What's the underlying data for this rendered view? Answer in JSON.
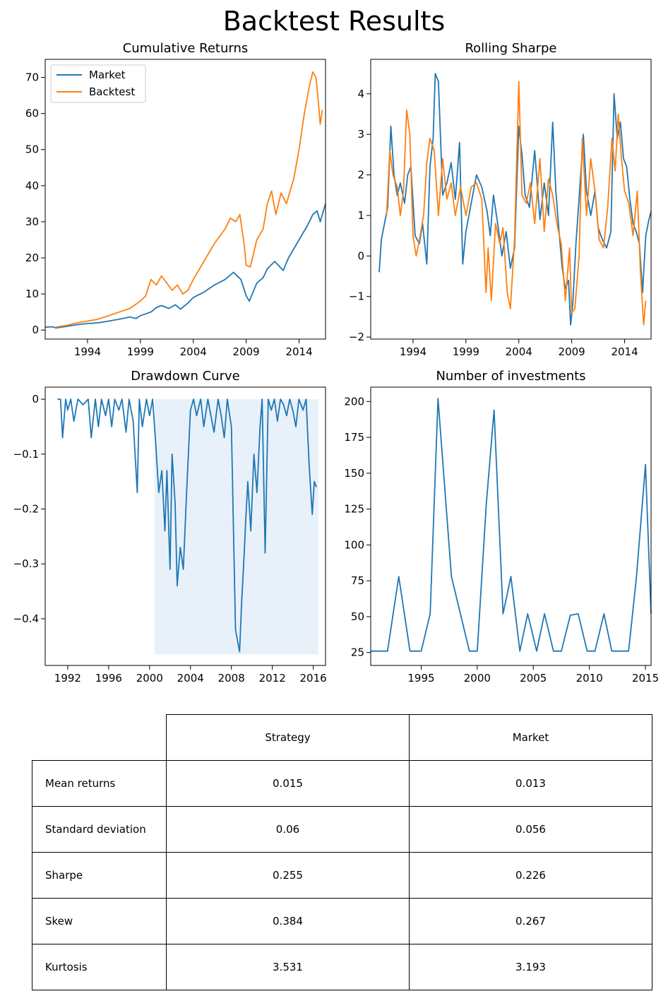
{
  "suptitle": "Backtest Results",
  "colors": {
    "market": "#1f77b4",
    "backtest": "#ff7f0e",
    "fill": "#e8f1fa"
  },
  "chart_data": [
    {
      "id": "cumulative",
      "type": "line",
      "title": "Cumulative Returns",
      "xlim": [
        1990.0,
        2016.5
      ],
      "ylim": [
        -2.5,
        75
      ],
      "xticks": [
        1994,
        1999,
        2004,
        2009,
        2014
      ],
      "yticks": [
        0,
        10,
        20,
        30,
        40,
        50,
        60,
        70
      ],
      "legend": {
        "position": "top-left",
        "entries": [
          "Market",
          "Backtest"
        ]
      },
      "series": [
        {
          "name": "Market",
          "color": "#1f77b4",
          "x": [
            1990.0,
            1990.7,
            1991.0,
            1992.0,
            1993.0,
            1994.0,
            1995.0,
            1996.0,
            1997.0,
            1998.0,
            1998.6,
            1999.0,
            2000.0,
            2000.5,
            2001.0,
            2001.7,
            2002.3,
            2002.8,
            2003.5,
            2004.0,
            2005.0,
            2006.0,
            2007.0,
            2007.8,
            2008.5,
            2009.0,
            2009.3,
            2010.0,
            2010.6,
            2011.0,
            2011.7,
            2012.5,
            2013.0,
            2014.0,
            2014.8,
            2015.3,
            2015.7,
            2016.0,
            2016.5
          ],
          "y": [
            0.8,
            0.9,
            0.6,
            1.0,
            1.5,
            1.8,
            2.0,
            2.5,
            3.0,
            3.6,
            3.2,
            4.0,
            5.0,
            6.2,
            6.8,
            6.0,
            7.0,
            5.8,
            7.5,
            9.0,
            10.5,
            12.5,
            14.0,
            16.0,
            14.0,
            9.5,
            8.0,
            13.0,
            14.5,
            17.0,
            19.0,
            16.5,
            20.0,
            25.0,
            29.0,
            32.0,
            33.0,
            30.0,
            35.0
          ]
        },
        {
          "name": "Backtest",
          "color": "#ff7f0e",
          "x": [
            1991.0,
            1992.0,
            1993.0,
            1994.0,
            1995.0,
            1996.0,
            1997.0,
            1998.0,
            1999.0,
            1999.5,
            2000.0,
            2000.5,
            2001.0,
            2001.5,
            2002.0,
            2002.5,
            2003.0,
            2003.5,
            2004.0,
            2005.0,
            2006.0,
            2007.0,
            2007.5,
            2008.0,
            2008.4,
            2008.8,
            2009.0,
            2009.4,
            2010.0,
            2010.6,
            2011.0,
            2011.4,
            2011.8,
            2012.3,
            2012.8,
            2013.5,
            2014.0,
            2014.5,
            2015.0,
            2015.3,
            2015.6,
            2015.8,
            2016.0,
            2016.2
          ],
          "y": [
            0.8,
            1.3,
            2.0,
            2.5,
            3.0,
            4.0,
            5.0,
            6.0,
            8.0,
            9.5,
            14.0,
            12.5,
            15.0,
            13.0,
            11.0,
            12.5,
            10.0,
            11.0,
            14.0,
            19.0,
            24.0,
            28.0,
            31.0,
            30.0,
            32.0,
            24.0,
            18.0,
            17.5,
            25.0,
            28.0,
            35.0,
            38.5,
            32.0,
            38.0,
            35.0,
            42.0,
            50.0,
            60.0,
            68.0,
            71.5,
            70.0,
            64.0,
            57.0,
            61.0
          ]
        }
      ]
    },
    {
      "id": "rolling-sharpe",
      "type": "line",
      "title": "Rolling Sharpe",
      "xlim": [
        1990.0,
        2016.5
      ],
      "ylim": [
        -2.05,
        4.85
      ],
      "xticks": [
        1994,
        1999,
        2004,
        2009,
        2014
      ],
      "yticks": [
        -2,
        -1,
        0,
        1,
        2,
        3,
        4
      ],
      "series": [
        {
          "name": "Market",
          "color": "#1f77b4",
          "x": [
            1990.8,
            1991.0,
            1991.3,
            1991.6,
            1991.9,
            1992.2,
            1992.5,
            1992.8,
            1993.2,
            1993.5,
            1993.8,
            1994.2,
            1994.6,
            1994.9,
            1995.3,
            1995.6,
            1995.9,
            1996.1,
            1996.4,
            1996.8,
            1997.2,
            1997.6,
            1998.0,
            1998.4,
            1998.7,
            1999.0,
            1999.5,
            2000.0,
            2000.5,
            2001.0,
            2001.3,
            2001.6,
            2002.0,
            2002.4,
            2002.8,
            2003.2,
            2003.6,
            2004.0,
            2004.3,
            2004.6,
            2005.0,
            2005.5,
            2006.0,
            2006.4,
            2006.8,
            2007.2,
            2007.5,
            2007.8,
            2008.1,
            2008.4,
            2008.7,
            2008.9,
            2009.1,
            2009.4,
            2009.8,
            2010.1,
            2010.4,
            2010.8,
            2011.2,
            2011.5,
            2011.9,
            2012.3,
            2012.7,
            2013.0,
            2013.3,
            2013.6,
            2013.9,
            2014.2,
            2014.5,
            2014.8,
            2015.1,
            2015.4,
            2015.7,
            2016.0,
            2016.3,
            2016.5
          ],
          "y": [
            -0.4,
            0.4,
            0.8,
            1.2,
            3.2,
            2.0,
            1.5,
            1.8,
            1.3,
            2.0,
            2.2,
            0.5,
            0.3,
            0.8,
            -0.2,
            2.2,
            2.9,
            4.5,
            4.3,
            1.5,
            1.8,
            2.3,
            1.4,
            2.8,
            -0.2,
            0.6,
            1.3,
            2.0,
            1.7,
            1.1,
            0.5,
            1.5,
            0.8,
            0.0,
            0.6,
            -0.3,
            0.2,
            3.2,
            2.5,
            1.5,
            1.2,
            2.6,
            0.9,
            1.8,
            1.0,
            3.3,
            1.6,
            0.6,
            -0.3,
            -0.8,
            -0.6,
            -1.7,
            -1.2,
            0.3,
            1.8,
            3.0,
            1.6,
            1.0,
            1.6,
            0.7,
            0.4,
            0.2,
            0.6,
            4.0,
            2.9,
            3.3,
            2.4,
            2.2,
            1.4,
            0.8,
            0.6,
            0.3,
            -0.9,
            0.5,
            0.9,
            1.1
          ]
        },
        {
          "name": "Backtest",
          "color": "#ff7f0e",
          "x": [
            1991.5,
            1991.8,
            1992.1,
            1992.5,
            1992.8,
            1993.1,
            1993.4,
            1993.7,
            1994.0,
            1994.3,
            1994.6,
            1995.0,
            1995.3,
            1995.6,
            1996.0,
            1996.4,
            1996.8,
            1997.2,
            1997.6,
            1998.0,
            1998.5,
            1999.0,
            1999.5,
            2000.0,
            2000.5,
            2000.9,
            2001.1,
            2001.4,
            2001.8,
            2002.2,
            2002.5,
            2002.9,
            2003.2,
            2003.6,
            2004.0,
            2004.3,
            2004.7,
            2005.1,
            2005.5,
            2006.0,
            2006.4,
            2006.8,
            2007.2,
            2007.6,
            2008.0,
            2008.4,
            2008.8,
            2009.0,
            2009.3,
            2009.7,
            2010.0,
            2010.4,
            2010.8,
            2011.2,
            2011.6,
            2012.0,
            2012.4,
            2012.8,
            2013.1,
            2013.4,
            2013.7,
            2014.0,
            2014.4,
            2014.8,
            2015.2,
            2015.5,
            2015.8,
            2016.0
          ],
          "y": [
            1.0,
            2.6,
            2.0,
            1.7,
            1.0,
            1.6,
            3.6,
            3.0,
            0.5,
            0.0,
            0.4,
            1.0,
            2.3,
            2.9,
            2.6,
            1.0,
            2.4,
            1.4,
            1.8,
            1.0,
            1.7,
            1.0,
            1.7,
            1.8,
            1.4,
            -0.9,
            0.2,
            -1.1,
            0.8,
            0.3,
            0.7,
            -0.9,
            -1.3,
            0.4,
            4.3,
            1.5,
            1.3,
            1.8,
            0.8,
            2.4,
            0.6,
            1.9,
            1.5,
            0.8,
            0.3,
            -1.1,
            0.2,
            -1.4,
            -1.3,
            0.0,
            2.9,
            1.0,
            2.4,
            1.6,
            0.4,
            0.2,
            1.2,
            2.9,
            2.1,
            3.5,
            2.4,
            1.6,
            1.3,
            0.5,
            1.6,
            -0.4,
            -1.7,
            -1.1
          ]
        }
      ]
    },
    {
      "id": "drawdown",
      "type": "area",
      "title": "Drawdown Curve",
      "xlim": [
        1989.8,
        2017.2
      ],
      "ylim": [
        -0.485,
        0.022
      ],
      "xticks": [
        1992,
        1996,
        2000,
        2004,
        2008,
        2012,
        2016
      ],
      "yticks": [
        0.0,
        -0.1,
        -0.2,
        -0.3,
        -0.4
      ],
      "fill_region": [
        2000.5,
        2016.5
      ],
      "series": [
        {
          "name": "",
          "color": "#1f77b4",
          "x": [
            1991.0,
            1991.3,
            1991.5,
            1991.8,
            1992.0,
            1992.3,
            1992.6,
            1993.0,
            1993.5,
            1994.0,
            1994.3,
            1994.7,
            1995.0,
            1995.3,
            1995.7,
            1996.0,
            1996.3,
            1996.6,
            1997.0,
            1997.3,
            1997.7,
            1998.0,
            1998.4,
            1998.8,
            1999.0,
            1999.3,
            1999.7,
            2000.0,
            2000.3,
            2000.6,
            2000.9,
            2001.2,
            2001.5,
            2001.7,
            2002.0,
            2002.2,
            2002.5,
            2002.7,
            2003.0,
            2003.3,
            2003.6,
            2004.0,
            2004.3,
            2004.6,
            2005.0,
            2005.3,
            2005.7,
            2006.0,
            2006.3,
            2006.7,
            2007.0,
            2007.3,
            2007.6,
            2008.0,
            2008.4,
            2008.8,
            2009.0,
            2009.2,
            2009.4,
            2009.6,
            2009.9,
            2010.2,
            2010.5,
            2010.8,
            2011.0,
            2011.3,
            2011.6,
            2011.9,
            2012.2,
            2012.5,
            2012.8,
            2013.1,
            2013.4,
            2013.7,
            2014.0,
            2014.3,
            2014.6,
            2015.0,
            2015.3,
            2015.6,
            2015.9,
            2016.1,
            2016.3
          ],
          "y": [
            0.0,
            0.0,
            -0.07,
            0.0,
            -0.02,
            0.0,
            -0.04,
            0.0,
            -0.01,
            0.0,
            -0.07,
            0.0,
            -0.05,
            0.0,
            -0.03,
            0.0,
            -0.05,
            0.0,
            -0.02,
            0.0,
            -0.06,
            0.0,
            -0.04,
            -0.17,
            0.0,
            -0.05,
            0.0,
            -0.03,
            0.0,
            -0.08,
            -0.17,
            -0.13,
            -0.24,
            -0.13,
            -0.31,
            -0.1,
            -0.19,
            -0.34,
            -0.27,
            -0.31,
            -0.18,
            -0.02,
            0.0,
            -0.03,
            0.0,
            -0.05,
            0.0,
            -0.03,
            -0.06,
            0.0,
            -0.03,
            -0.07,
            0.0,
            -0.05,
            -0.42,
            -0.46,
            -0.37,
            -0.3,
            -0.22,
            -0.15,
            -0.24,
            -0.1,
            -0.17,
            -0.05,
            0.0,
            -0.28,
            0.0,
            -0.02,
            0.0,
            -0.04,
            0.0,
            -0.01,
            -0.03,
            0.0,
            -0.02,
            -0.05,
            0.0,
            -0.02,
            0.0,
            -0.12,
            -0.21,
            -0.15,
            -0.16
          ]
        }
      ]
    },
    {
      "id": "investments",
      "type": "line",
      "title": "Number of investments",
      "xlim": [
        1990.5,
        2015.5
      ],
      "ylim": [
        16,
        210
      ],
      "xticks": [
        1995,
        2000,
        2005,
        2010,
        2015
      ],
      "yticks": [
        25,
        50,
        75,
        100,
        125,
        150,
        175,
        200
      ],
      "series": [
        {
          "name": "",
          "color": "#1f77b4",
          "x": [
            1990.5,
            1992.0,
            1993.0,
            1994.0,
            1995.0,
            1995.8,
            1996.5,
            1997.7,
            1998.5,
            1999.3,
            2000.0,
            2000.8,
            2001.5,
            2002.3,
            2003.0,
            2003.8,
            2004.5,
            2005.3,
            2006.0,
            2006.8,
            2007.5,
            2008.3,
            2009.0,
            2009.8,
            2010.5,
            2011.3,
            2012.0,
            2012.8,
            2013.5,
            2014.2,
            2015.0,
            2015.5
          ],
          "y": [
            26,
            26,
            78,
            26,
            26,
            52,
            202,
            78,
            52,
            26,
            26,
            128,
            194,
            52,
            78,
            26,
            52,
            26,
            52,
            26,
            26,
            51,
            52,
            26,
            26,
            52,
            26,
            26,
            26,
            78,
            156,
            52
          ]
        }
      ]
    }
  ],
  "table": {
    "headers": [
      "Strategy",
      "Market"
    ],
    "rows": [
      {
        "label": "Mean returns",
        "strategy": "0.015",
        "market": "0.013"
      },
      {
        "label": "Standard deviation",
        "strategy": "0.06",
        "market": "0.056"
      },
      {
        "label": "Sharpe",
        "strategy": "0.255",
        "market": "0.226"
      },
      {
        "label": "Skew",
        "strategy": "0.384",
        "market": "0.267"
      },
      {
        "label": "Kurtosis",
        "strategy": "3.531",
        "market": "3.193"
      }
    ]
  }
}
